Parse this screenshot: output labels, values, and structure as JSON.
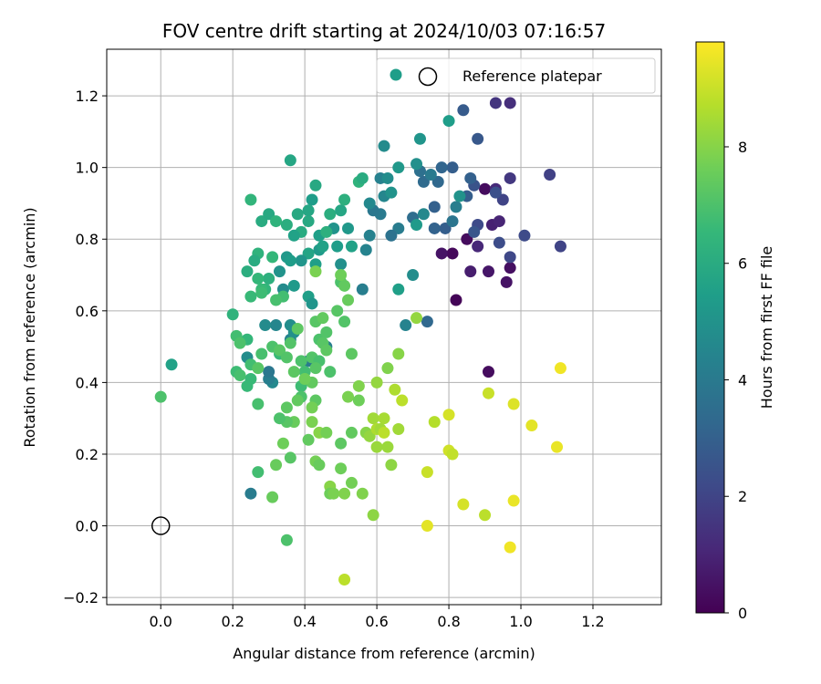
{
  "chart_data": {
    "type": "scatter",
    "title": "FOV centre drift starting at 2024/10/03 07:16:57",
    "xlabel": "Angular distance from reference (arcmin)",
    "ylabel": "Rotation from reference (arcmin)",
    "xlim": [
      -0.15,
      1.39
    ],
    "ylim": [
      -0.22,
      1.33
    ],
    "xticks": [
      0.0,
      0.2,
      0.4,
      0.6,
      0.8,
      1.0,
      1.2
    ],
    "xtick_labels": [
      "0.0",
      "0.2",
      "0.4",
      "0.6",
      "0.8",
      "1.0",
      "1.2"
    ],
    "yticks": [
      -0.2,
      0.0,
      0.2,
      0.4,
      0.6,
      0.8,
      1.0,
      1.2
    ],
    "ytick_labels": [
      "−0.2",
      "0.0",
      "0.2",
      "0.4",
      "0.6",
      "0.8",
      "1.0",
      "1.2"
    ],
    "grid": true,
    "legend": {
      "placement": "top-right",
      "entries": [
        "Reference platepar"
      ]
    },
    "reference_point": {
      "x": 0.0,
      "y": 0.0
    },
    "colorbar": {
      "label": "Hours from first FF file",
      "colormap": "viridis",
      "range": [
        0,
        9.8
      ],
      "ticks": [
        0,
        2,
        4,
        6,
        8
      ],
      "tick_labels": [
        "0",
        "2",
        "4",
        "6",
        "8"
      ]
    },
    "points": [
      [
        0.81,
        0.76,
        0.2
      ],
      [
        0.78,
        0.76,
        0.5
      ],
      [
        0.82,
        0.63,
        0.1
      ],
      [
        0.91,
        0.71,
        0.6
      ],
      [
        0.96,
        0.68,
        0.5
      ],
      [
        0.97,
        0.72,
        0.4
      ],
      [
        0.86,
        0.71,
        0.8
      ],
      [
        0.91,
        0.43,
        0.3
      ],
      [
        0.9,
        0.94,
        0.3
      ],
      [
        0.93,
        0.94,
        1.2
      ],
      [
        0.92,
        0.84,
        0.9
      ],
      [
        0.94,
        0.85,
        1.0
      ],
      [
        0.85,
        0.8,
        0.3
      ],
      [
        0.88,
        0.78,
        1.1
      ],
      [
        0.93,
        1.18,
        1.5
      ],
      [
        0.97,
        1.18,
        1.3
      ],
      [
        0.97,
        0.97,
        1.6
      ],
      [
        1.08,
        0.98,
        1.9
      ],
      [
        1.11,
        0.78,
        2.0
      ],
      [
        1.01,
        0.81,
        2.2
      ],
      [
        0.97,
        0.75,
        2.1
      ],
      [
        0.95,
        0.91,
        2.0
      ],
      [
        0.94,
        0.79,
        2.3
      ],
      [
        0.93,
        0.93,
        2.4
      ],
      [
        0.88,
        0.84,
        2.2
      ],
      [
        0.87,
        0.95,
        2.5
      ],
      [
        0.85,
        0.92,
        2.9
      ],
      [
        0.87,
        0.82,
        2.6
      ],
      [
        0.84,
        1.16,
        2.8
      ],
      [
        0.88,
        1.08,
        2.7
      ],
      [
        0.86,
        0.97,
        3.0
      ],
      [
        0.81,
        1.0,
        2.9
      ],
      [
        0.78,
        1.0,
        3.2
      ],
      [
        0.77,
        0.96,
        3.3
      ],
      [
        0.76,
        0.89,
        3.0
      ],
      [
        0.73,
        0.96,
        3.4
      ],
      [
        0.72,
        0.99,
        3.6
      ],
      [
        0.75,
        0.98,
        4.0
      ],
      [
        0.79,
        0.83,
        2.9
      ],
      [
        0.76,
        0.83,
        3.1
      ],
      [
        0.74,
        0.57,
        3.3
      ],
      [
        0.82,
        0.89,
        4.2
      ],
      [
        0.81,
        0.85,
        3.8
      ],
      [
        0.7,
        0.86,
        3.5
      ],
      [
        0.66,
        0.83,
        4.1
      ],
      [
        0.64,
        0.81,
        3.7
      ],
      [
        0.61,
        0.87,
        4.0
      ],
      [
        0.59,
        0.88,
        3.9
      ],
      [
        0.58,
        0.81,
        4.3
      ],
      [
        0.58,
        0.9,
        4.6
      ],
      [
        0.57,
        0.77,
        4.4
      ],
      [
        0.56,
        0.66,
        4.2
      ],
      [
        0.62,
        0.92,
        4.5
      ],
      [
        0.61,
        0.97,
        4.3
      ],
      [
        0.62,
        1.06,
        4.7
      ],
      [
        0.63,
        0.97,
        4.8
      ],
      [
        0.64,
        0.93,
        5.0
      ],
      [
        0.66,
        1.0,
        5.2
      ],
      [
        0.71,
        1.01,
        4.9
      ],
      [
        0.72,
        1.08,
        5.1
      ],
      [
        0.73,
        0.87,
        4.6
      ],
      [
        0.71,
        0.84,
        5.3
      ],
      [
        0.7,
        0.7,
        4.8
      ],
      [
        0.68,
        0.56,
        4.4
      ],
      [
        0.66,
        0.66,
        5.5
      ],
      [
        0.8,
        1.13,
        5.4
      ],
      [
        0.83,
        0.92,
        5.0
      ],
      [
        0.53,
        0.78,
        5.6
      ],
      [
        0.52,
        0.83,
        5.2
      ],
      [
        0.48,
        0.83,
        5.0
      ],
      [
        0.49,
        0.78,
        5.4
      ],
      [
        0.5,
        0.73,
        4.9
      ],
      [
        0.44,
        0.77,
        5.3
      ],
      [
        0.44,
        0.81,
        5.5
      ],
      [
        0.41,
        0.76,
        5.7
      ],
      [
        0.39,
        0.74,
        5.1
      ],
      [
        0.42,
        0.91,
        5.4
      ],
      [
        0.41,
        0.85,
        5.9
      ],
      [
        0.41,
        0.88,
        5.8
      ],
      [
        0.39,
        0.82,
        6.0
      ],
      [
        0.43,
        0.95,
        5.9
      ],
      [
        0.47,
        0.87,
        6.1
      ],
      [
        0.5,
        0.88,
        5.8
      ],
      [
        0.51,
        0.91,
        6.2
      ],
      [
        0.55,
        0.96,
        6.3
      ],
      [
        0.56,
        0.97,
        6.0
      ],
      [
        0.46,
        0.82,
        6.2
      ],
      [
        0.45,
        0.78,
        5.6
      ],
      [
        0.43,
        0.73,
        5.5
      ],
      [
        0.36,
        1.02,
        5.8
      ],
      [
        0.38,
        0.87,
        5.9
      ],
      [
        0.35,
        0.84,
        6.1
      ],
      [
        0.35,
        0.75,
        5.2
      ],
      [
        0.37,
        0.81,
        5.6
      ],
      [
        0.36,
        0.74,
        5.4
      ],
      [
        0.34,
        0.66,
        4.7
      ],
      [
        0.33,
        0.71,
        5.0
      ],
      [
        0.37,
        0.67,
        5.3
      ],
      [
        0.41,
        0.64,
        5.5
      ],
      [
        0.42,
        0.62,
        5.1
      ],
      [
        0.36,
        0.56,
        4.8
      ],
      [
        0.36,
        0.52,
        4.4
      ],
      [
        0.37,
        0.54,
        4.9
      ],
      [
        0.32,
        0.56,
        4.5
      ],
      [
        0.29,
        0.56,
        4.7
      ],
      [
        0.31,
        0.4,
        4.6
      ],
      [
        0.3,
        0.41,
        4.2
      ],
      [
        0.3,
        0.43,
        3.9
      ],
      [
        0.41,
        0.46,
        4.0
      ],
      [
        0.46,
        0.5,
        4.2
      ],
      [
        0.24,
        0.47,
        4.8
      ],
      [
        0.25,
        0.09,
        4.1
      ],
      [
        0.03,
        0.45,
        5.6
      ],
      [
        0.28,
        0.85,
        6.0
      ],
      [
        0.3,
        0.87,
        5.9
      ],
      [
        0.32,
        0.85,
        6.3
      ],
      [
        0.25,
        0.91,
        6.4
      ],
      [
        0.31,
        0.75,
        6.5
      ],
      [
        0.3,
        0.69,
        6.2
      ],
      [
        0.27,
        0.76,
        6.3
      ],
      [
        0.26,
        0.74,
        6.0
      ],
      [
        0.24,
        0.71,
        6.1
      ],
      [
        0.27,
        0.69,
        6.5
      ],
      [
        0.29,
        0.66,
        6.4
      ],
      [
        0.28,
        0.66,
        6.6
      ],
      [
        0.28,
        0.65,
        6.7
      ],
      [
        0.25,
        0.64,
        6.6
      ],
      [
        0.34,
        0.64,
        6.8
      ],
      [
        0.32,
        0.63,
        6.9
      ],
      [
        0.24,
        0.52,
        6.5
      ],
      [
        0.21,
        0.53,
        6.8
      ],
      [
        0.2,
        0.59,
        6.3
      ],
      [
        0.21,
        0.43,
        6.7
      ],
      [
        0.25,
        0.41,
        6.6
      ],
      [
        0.27,
        0.34,
        6.9
      ],
      [
        0.27,
        0.15,
        6.8
      ],
      [
        0.33,
        0.48,
        6.6
      ],
      [
        0.36,
        0.51,
        7.1
      ],
      [
        0.38,
        0.55,
        7.3
      ],
      [
        0.39,
        0.39,
        6.7
      ],
      [
        0.39,
        0.46,
        7.0
      ],
      [
        0.4,
        0.43,
        6.8
      ],
      [
        0.42,
        0.47,
        7.1
      ],
      [
        0.44,
        0.52,
        7.0
      ],
      [
        0.45,
        0.51,
        7.2
      ],
      [
        0.46,
        0.49,
        7.3
      ],
      [
        0.47,
        0.43,
        7.0
      ],
      [
        0.44,
        0.46,
        6.9
      ],
      [
        0.43,
        0.44,
        7.2
      ],
      [
        0.42,
        0.4,
        7.4
      ],
      [
        0.46,
        0.54,
        7.1
      ],
      [
        0.49,
        0.6,
        7.2
      ],
      [
        0.5,
        0.68,
        7.0
      ],
      [
        0.51,
        0.57,
        7.1
      ],
      [
        0.52,
        0.63,
        7.5
      ],
      [
        0.53,
        0.48,
        7.3
      ],
      [
        0.51,
        0.67,
        7.4
      ],
      [
        0.5,
        0.7,
        7.6
      ],
      [
        0.43,
        0.71,
        7.8
      ],
      [
        0.43,
        0.57,
        7.2
      ],
      [
        0.45,
        0.58,
        7.4
      ],
      [
        0.22,
        0.51,
        7.0
      ],
      [
        0.22,
        0.42,
        6.9
      ],
      [
        0.24,
        0.39,
        6.6
      ],
      [
        0.25,
        0.45,
        6.8
      ],
      [
        0.27,
        0.44,
        7.2
      ],
      [
        0.28,
        0.48,
        6.9
      ],
      [
        0.31,
        0.5,
        7.0
      ],
      [
        0.33,
        0.49,
        7.2
      ],
      [
        0.35,
        0.47,
        7.1
      ],
      [
        0.37,
        0.43,
        7.3
      ],
      [
        0.39,
        0.36,
        7.0
      ],
      [
        0.4,
        0.41,
        7.6
      ],
      [
        0.43,
        0.35,
        7.3
      ],
      [
        0.42,
        0.33,
        7.7
      ],
      [
        0.38,
        0.35,
        7.4
      ],
      [
        0.37,
        0.29,
        7.5
      ],
      [
        0.35,
        0.29,
        7.2
      ],
      [
        0.33,
        0.3,
        7.0
      ],
      [
        0.35,
        0.33,
        7.3
      ],
      [
        0.34,
        0.23,
        7.6
      ],
      [
        0.36,
        0.19,
        7.2
      ],
      [
        0.32,
        0.17,
        7.5
      ],
      [
        0.31,
        0.08,
        7.5
      ],
      [
        0.35,
        -0.04,
        7.0
      ],
      [
        0.0,
        0.36,
        7.0
      ],
      [
        0.42,
        0.29,
        7.8
      ],
      [
        0.41,
        0.24,
        7.4
      ],
      [
        0.43,
        0.18,
        7.7
      ],
      [
        0.44,
        0.17,
        7.5
      ],
      [
        0.44,
        0.26,
        8.0
      ],
      [
        0.46,
        0.26,
        7.7
      ],
      [
        0.47,
        0.11,
        8.0
      ],
      [
        0.47,
        0.09,
        7.6
      ],
      [
        0.48,
        0.09,
        7.8
      ],
      [
        0.5,
        0.16,
        7.6
      ],
      [
        0.5,
        0.23,
        7.3
      ],
      [
        0.51,
        0.09,
        7.9
      ],
      [
        0.52,
        0.36,
        7.8
      ],
      [
        0.53,
        0.12,
        7.7
      ],
      [
        0.53,
        0.26,
        7.4
      ],
      [
        0.55,
        0.35,
        7.6
      ],
      [
        0.55,
        0.39,
        7.9
      ],
      [
        0.56,
        0.09,
        7.9
      ],
      [
        0.57,
        0.26,
        8.0
      ],
      [
        0.58,
        0.25,
        8.2
      ],
      [
        0.59,
        0.3,
        8.4
      ],
      [
        0.59,
        0.03,
        8.1
      ],
      [
        0.6,
        0.4,
        8.2
      ],
      [
        0.6,
        0.22,
        8.3
      ],
      [
        0.6,
        0.27,
        8.6
      ],
      [
        0.61,
        0.27,
        8.4
      ],
      [
        0.62,
        0.3,
        8.5
      ],
      [
        0.62,
        0.26,
        8.8
      ],
      [
        0.63,
        0.22,
        8.3
      ],
      [
        0.63,
        0.44,
        7.9
      ],
      [
        0.64,
        0.17,
        8.1
      ],
      [
        0.65,
        0.38,
        8.6
      ],
      [
        0.66,
        0.27,
        8.4
      ],
      [
        0.66,
        0.48,
        8.0
      ],
      [
        0.67,
        0.35,
        8.8
      ],
      [
        0.71,
        0.58,
        8.2
      ],
      [
        0.74,
        0.15,
        9.0
      ],
      [
        0.74,
        0.0,
        9.4
      ],
      [
        0.76,
        0.29,
        8.7
      ],
      [
        0.8,
        0.21,
        9.1
      ],
      [
        0.81,
        0.2,
        8.9
      ],
      [
        0.8,
        0.31,
        9.2
      ],
      [
        0.84,
        0.06,
        9.2
      ],
      [
        0.9,
        0.03,
        8.8
      ],
      [
        0.91,
        0.37,
        9.0
      ],
      [
        0.97,
        -0.06,
        9.6
      ],
      [
        0.98,
        0.07,
        9.5
      ],
      [
        0.98,
        0.34,
        9.3
      ],
      [
        1.03,
        0.28,
        9.4
      ],
      [
        1.1,
        0.22,
        9.5
      ],
      [
        1.11,
        0.44,
        9.6
      ],
      [
        0.51,
        -0.15,
        8.8
      ]
    ]
  }
}
